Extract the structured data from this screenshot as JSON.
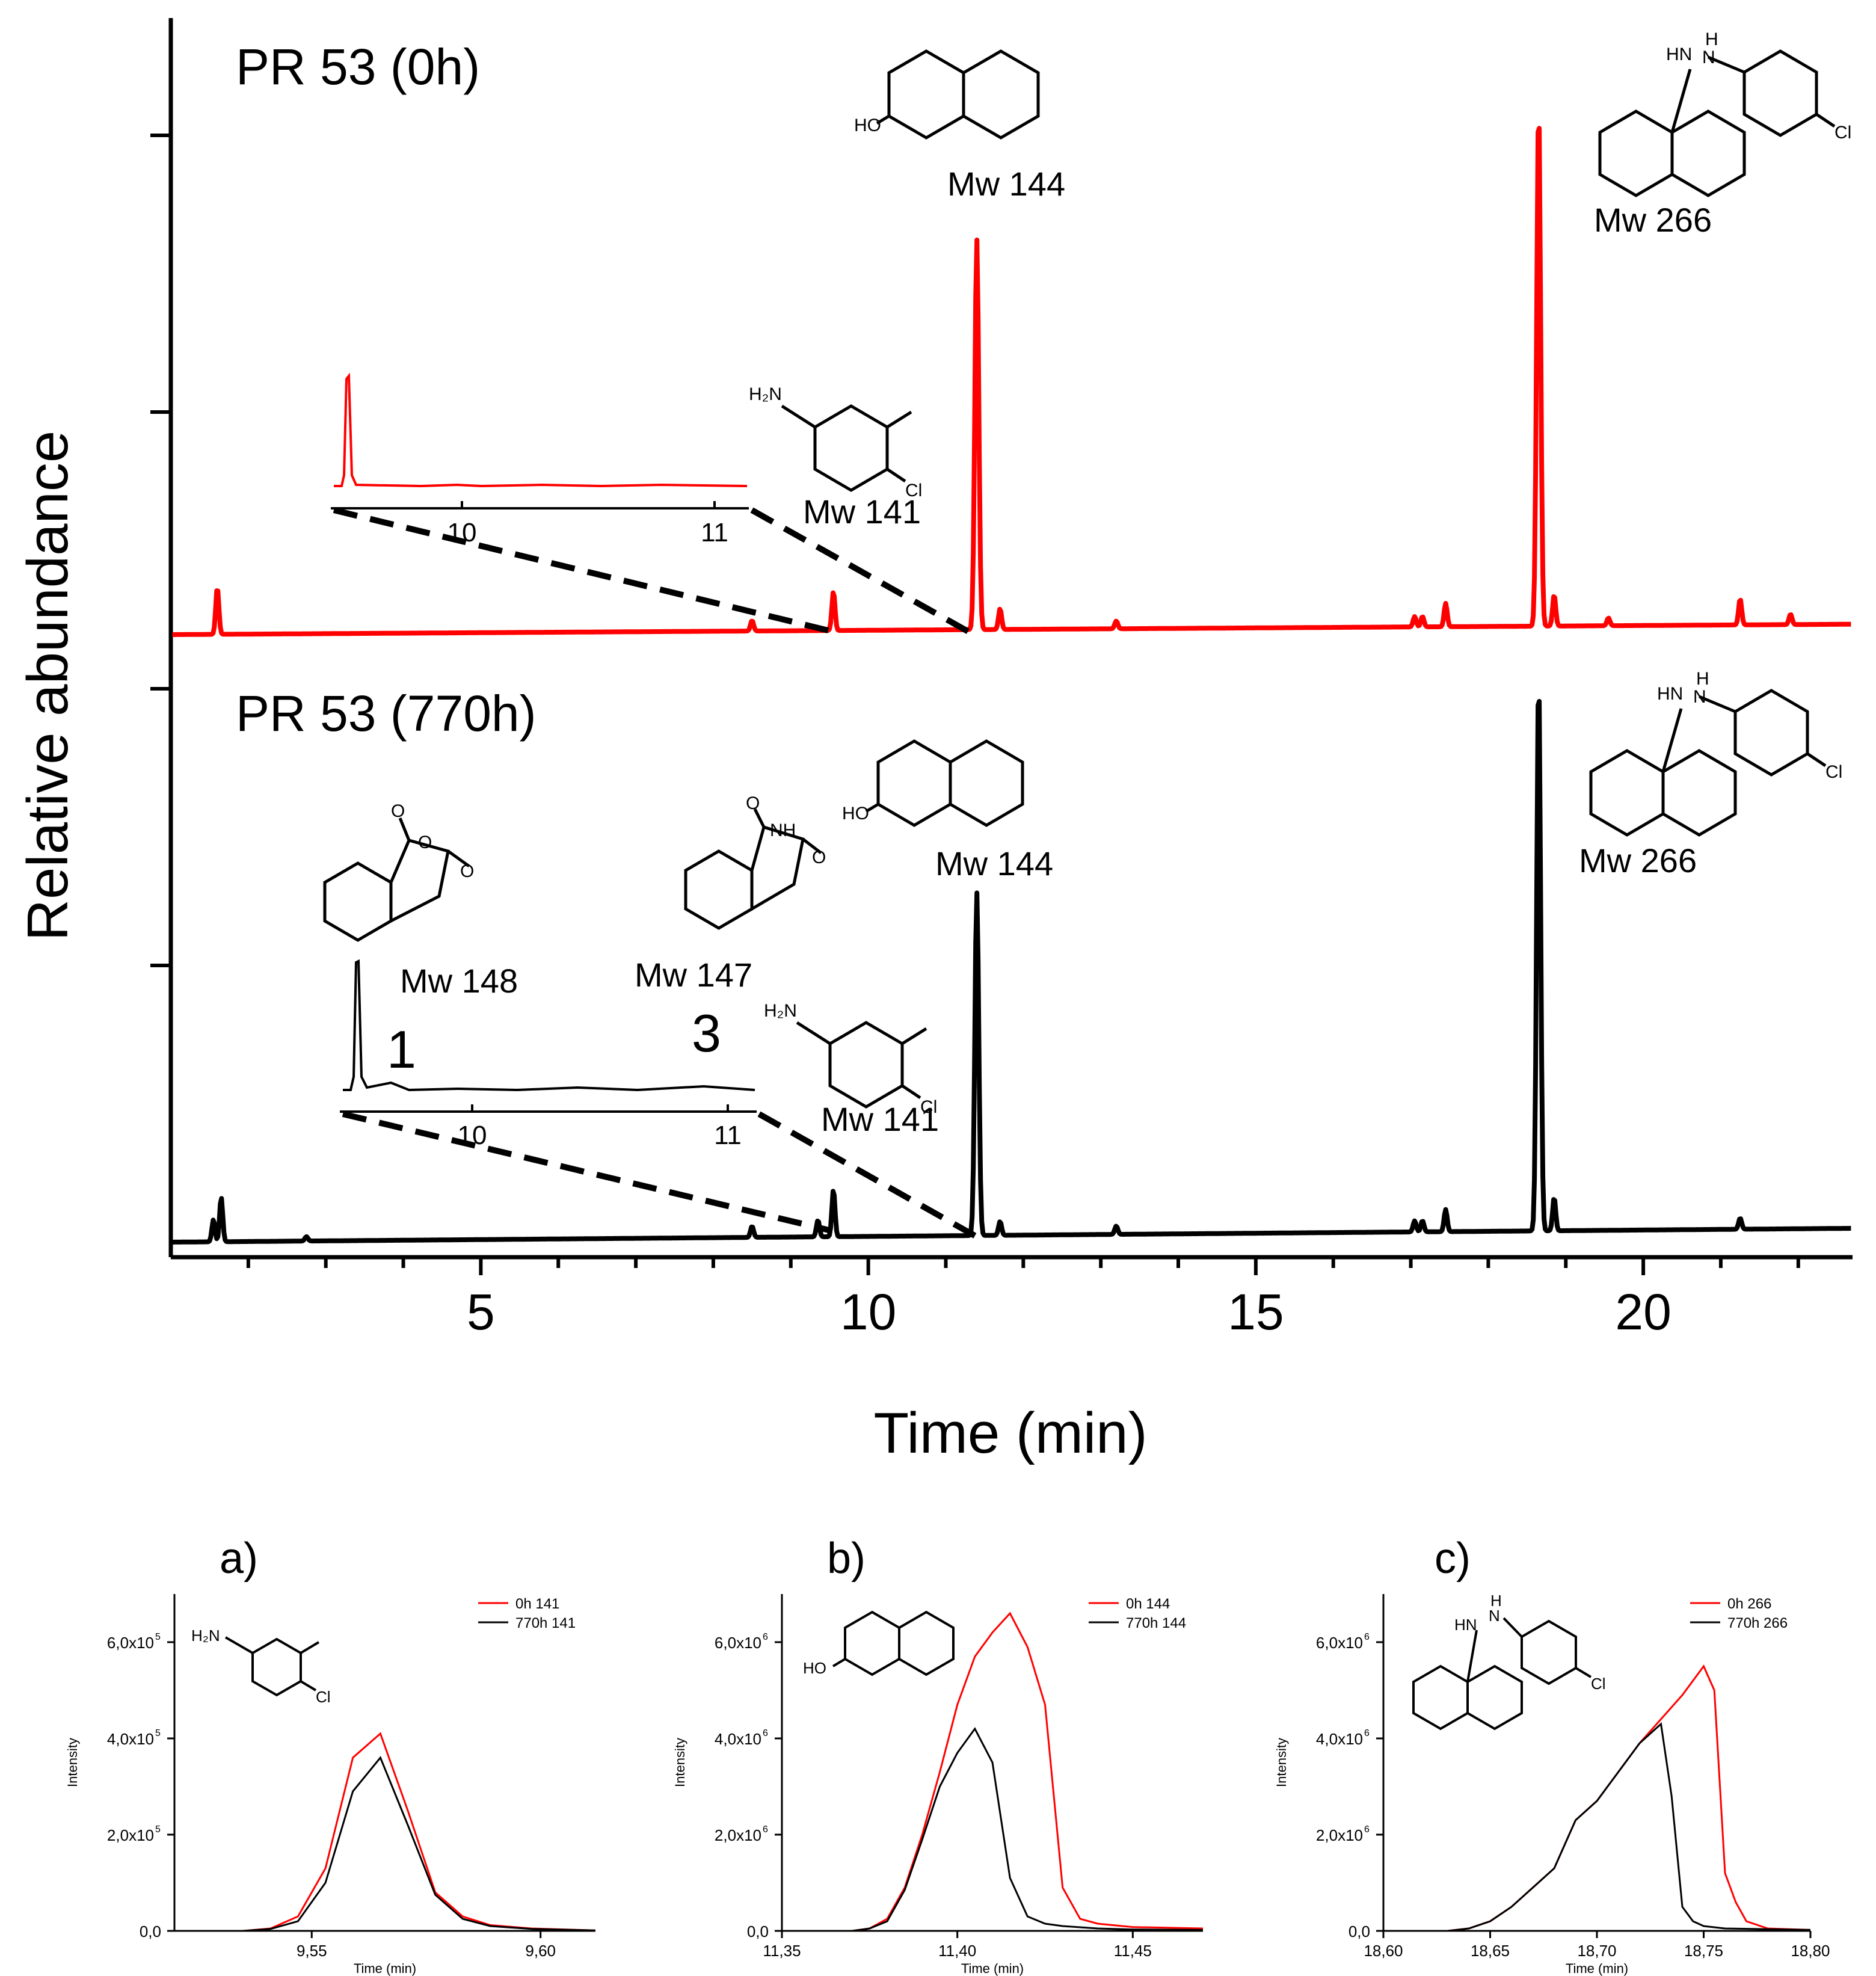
{
  "colors": {
    "trace_0h": "#ff0000",
    "trace_770h": "#000000",
    "axis": "#000000"
  },
  "chart_data": [
    {
      "type": "line",
      "id": "main",
      "title": "",
      "xlabel": "Time (min)",
      "ylabel": "Relative abundance",
      "xlim": [
        1,
        22.7
      ],
      "xticks": [
        5,
        10,
        15,
        20
      ],
      "xtick_labels": [
        "5",
        "10",
        "15",
        "20"
      ],
      "yticks_top": [
        0.5,
        0.75
      ],
      "yticks_bottom": [
        0.5,
        1.0
      ],
      "series": [
        {
          "name": "PR 53 (0h)",
          "color": "#ff0000",
          "baseline": 0.0,
          "baseline_end": 0.04,
          "peaks": [
            {
              "x": 1.6,
              "h": 0.09
            },
            {
              "x": 8.5,
              "h": 0.02
            },
            {
              "x": 9.55,
              "h": 0.075
            },
            {
              "x": 11.4,
              "h": 0.75
            },
            {
              "x": 11.7,
              "h": 0.04
            },
            {
              "x": 13.2,
              "h": 0.015
            },
            {
              "x": 17.05,
              "h": 0.02
            },
            {
              "x": 17.15,
              "h": 0.02
            },
            {
              "x": 17.45,
              "h": 0.045
            },
            {
              "x": 18.65,
              "h": 1.0
            },
            {
              "x": 18.85,
              "h": 0.06
            },
            {
              "x": 19.55,
              "h": 0.015
            },
            {
              "x": 21.25,
              "h": 0.05
            },
            {
              "x": 21.9,
              "h": 0.02
            }
          ],
          "labels": [
            {
              "text": "Mw 144",
              "x": 11.4
            },
            {
              "text": "Mw 266",
              "x": 18.65
            },
            {
              "text": "Mw 141",
              "x": 9.55
            }
          ]
        },
        {
          "name": "PR 53 (770h)",
          "color": "#000000",
          "baseline": 0.0,
          "baseline_end": 0.05,
          "peaks": [
            {
              "x": 1.55,
              "h": 0.04
            },
            {
              "x": 1.65,
              "h": 0.08
            },
            {
              "x": 2.75,
              "h": 0.008
            },
            {
              "x": 8.5,
              "h": 0.02
            },
            {
              "x": 9.35,
              "h": 0.03
            },
            {
              "x": 9.55,
              "h": 0.085
            },
            {
              "x": 11.4,
              "h": 0.62
            },
            {
              "x": 11.7,
              "h": 0.025
            },
            {
              "x": 13.2,
              "h": 0.015
            },
            {
              "x": 17.05,
              "h": 0.02
            },
            {
              "x": 17.15,
              "h": 0.02
            },
            {
              "x": 17.45,
              "h": 0.04
            },
            {
              "x": 18.65,
              "h": 1.0
            },
            {
              "x": 18.85,
              "h": 0.06
            },
            {
              "x": 21.25,
              "h": 0.02
            }
          ],
          "labels": [
            {
              "text": "Mw 144",
              "x": 11.4
            },
            {
              "text": "Mw 266",
              "x": 18.65
            },
            {
              "text": "Mw 148",
              "x": 9.35
            },
            {
              "text": "Mw 147",
              "x": 9.55
            },
            {
              "text": "Mw 141",
              "x": 9.55
            }
          ],
          "numbers": [
            "1",
            "3"
          ]
        }
      ],
      "insets": [
        {
          "panel": "0h",
          "xlim": [
            9.5,
            11.15
          ],
          "ticks": [
            "10",
            "11"
          ],
          "peak_x": 9.55
        },
        {
          "panel": "770h",
          "xlim": [
            9.5,
            11.1
          ],
          "ticks": [
            "10",
            "11"
          ],
          "peak_x": 9.55
        }
      ]
    },
    {
      "type": "line",
      "id": "a",
      "panel_label": "a)",
      "xlabel": "Time (min)",
      "ylabel": "Intensity",
      "xlim": [
        9.52,
        9.612
      ],
      "ylim": [
        0,
        700000
      ],
      "xticks": [
        9.55,
        9.6
      ],
      "xtick_labels": [
        "9,55",
        "9,60"
      ],
      "yticks": [
        0,
        200000,
        400000,
        600000
      ],
      "ytick_mantissa": [
        "0,0",
        "2,0x10",
        "4,0x10",
        "6,0x10"
      ],
      "ytick_exponent": [
        "",
        "5",
        "5",
        "5"
      ],
      "legend": [
        "0h 141",
        "770h 141"
      ],
      "series": [
        {
          "name": "0h 141",
          "color": "#ff0000",
          "x": [
            9.52,
            9.535,
            9.541,
            9.547,
            9.553,
            9.559,
            9.565,
            9.571,
            9.577,
            9.583,
            9.589,
            9.598,
            9.612
          ],
          "y": [
            0,
            0,
            5000,
            30000,
            130000,
            360000,
            410000,
            250000,
            80000,
            30000,
            12000,
            5000,
            1000
          ]
        },
        {
          "name": "770h 141",
          "color": "#000000",
          "x": [
            9.52,
            9.535,
            9.541,
            9.547,
            9.553,
            9.559,
            9.565,
            9.571,
            9.577,
            9.583,
            9.589,
            9.598,
            9.612
          ],
          "y": [
            0,
            0,
            4000,
            20000,
            100000,
            290000,
            360000,
            220000,
            75000,
            25000,
            10000,
            4000,
            1000
          ]
        }
      ]
    },
    {
      "type": "line",
      "id": "b",
      "panel_label": "b)",
      "xlabel": "Time (min)",
      "ylabel": "Intensity",
      "xlim": [
        11.35,
        11.47
      ],
      "ylim": [
        0,
        7000000
      ],
      "xticks": [
        11.35,
        11.4,
        11.45
      ],
      "xtick_labels": [
        "11,35",
        "11,40",
        "11,45"
      ],
      "yticks": [
        0,
        2000000,
        4000000,
        6000000
      ],
      "ytick_mantissa": [
        "0,0",
        "2,0x10",
        "4,0x10",
        "6,0x10"
      ],
      "ytick_exponent": [
        "",
        "6",
        "6",
        "6"
      ],
      "legend": [
        "0h 144",
        "770h 144"
      ],
      "series": [
        {
          "name": "0h 144",
          "color": "#ff0000",
          "x": [
            11.35,
            11.37,
            11.375,
            11.38,
            11.385,
            11.39,
            11.395,
            11.4,
            11.405,
            11.41,
            11.415,
            11.42,
            11.425,
            11.43,
            11.435,
            11.44,
            11.45,
            11.47
          ],
          "y": [
            0,
            0,
            50000,
            250000,
            900000,
            2000000,
            3300000,
            4700000,
            5700000,
            6200000,
            6600000,
            5900000,
            4700000,
            900000,
            250000,
            150000,
            80000,
            50000
          ]
        },
        {
          "name": "770h 144",
          "color": "#000000",
          "x": [
            11.35,
            11.37,
            11.375,
            11.38,
            11.385,
            11.39,
            11.395,
            11.4,
            11.405,
            11.41,
            11.415,
            11.42,
            11.425,
            11.43,
            11.44,
            11.45,
            11.47
          ],
          "y": [
            0,
            0,
            50000,
            200000,
            850000,
            1900000,
            3000000,
            3700000,
            4200000,
            3500000,
            1100000,
            300000,
            150000,
            100000,
            50000,
            30000,
            20000
          ]
        }
      ]
    },
    {
      "type": "line",
      "id": "c",
      "panel_label": "c)",
      "xlabel": "Time (min)",
      "ylabel": "Intensity",
      "xlim": [
        18.6,
        18.8
      ],
      "ylim": [
        0,
        7000000
      ],
      "xticks": [
        18.6,
        18.65,
        18.7,
        18.75,
        18.8
      ],
      "xtick_labels": [
        "18,60",
        "18,65",
        "18,70",
        "18,75",
        "18,80"
      ],
      "yticks": [
        0,
        2000000,
        4000000,
        6000000
      ],
      "ytick_mantissa": [
        "0,0",
        "2,0x10",
        "4,0x10",
        "6,0x10"
      ],
      "ytick_exponent": [
        "",
        "6",
        "6",
        "6"
      ],
      "legend": [
        "0h 266",
        "770h 266"
      ],
      "series": [
        {
          "name": "0h 266",
          "color": "#ff0000",
          "x": [
            18.6,
            18.63,
            18.64,
            18.65,
            18.66,
            18.67,
            18.68,
            18.69,
            18.7,
            18.71,
            18.72,
            18.73,
            18.74,
            18.75,
            18.755,
            18.76,
            18.765,
            18.77,
            18.78,
            18.8
          ],
          "y": [
            0,
            0,
            50000,
            200000,
            500000,
            900000,
            1300000,
            2300000,
            2700000,
            3300000,
            3900000,
            4400000,
            4900000,
            5500000,
            5000000,
            1200000,
            600000,
            200000,
            50000,
            20000
          ]
        },
        {
          "name": "770h 266",
          "color": "#000000",
          "x": [
            18.6,
            18.63,
            18.64,
            18.65,
            18.66,
            18.67,
            18.68,
            18.69,
            18.7,
            18.71,
            18.72,
            18.73,
            18.735,
            18.74,
            18.745,
            18.75,
            18.76,
            18.8
          ],
          "y": [
            0,
            0,
            50000,
            200000,
            500000,
            900000,
            1300000,
            2300000,
            2700000,
            3300000,
            3900000,
            4300000,
            2800000,
            500000,
            200000,
            100000,
            50000,
            20000
          ]
        }
      ]
    }
  ]
}
